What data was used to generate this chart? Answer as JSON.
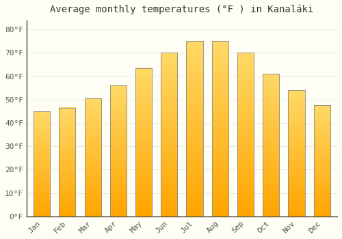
{
  "title": "Average monthly temperatures (°F ) in Kanaláki",
  "months": [
    "Jan",
    "Feb",
    "Mar",
    "Apr",
    "May",
    "Jun",
    "Jul",
    "Aug",
    "Sep",
    "Oct",
    "Nov",
    "Dec"
  ],
  "values": [
    45,
    46.5,
    50.5,
    56,
    63.5,
    70,
    75,
    75,
    70,
    61,
    54,
    47.5
  ],
  "bar_color_bottom": "#FFA500",
  "bar_color_top": "#FFD966",
  "background_color": "#FFFEF5",
  "grid_color": "#E8E8E8",
  "spine_color": "#444444",
  "yticks": [
    0,
    10,
    20,
    30,
    40,
    50,
    60,
    70,
    80
  ],
  "ylim": [
    0,
    84
  ],
  "title_fontsize": 10,
  "tick_fontsize": 8,
  "font_family": "monospace"
}
